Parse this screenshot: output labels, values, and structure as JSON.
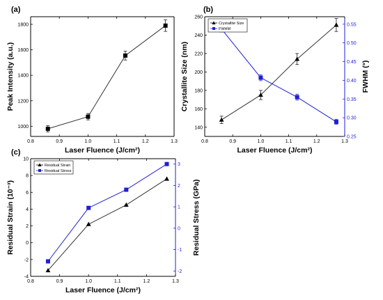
{
  "figure": {
    "panels": [
      {
        "id": "a",
        "label": "(a)"
      },
      {
        "id": "b",
        "label": "(b)"
      },
      {
        "id": "c",
        "label": "(c)"
      }
    ],
    "colors": {
      "black_series": "#000000",
      "blue_series": "#1f1fd6",
      "right_axis": "#1f1fd6",
      "line": "#333333"
    }
  },
  "chart_data": [
    {
      "type": "line",
      "panel": "(a)",
      "xlabel": "Laser Fluence (J/cm²)",
      "ylabel": "Peak Intensity (a.u.)",
      "xlim": [
        0.8,
        1.3
      ],
      "ylim": [
        920,
        1860
      ],
      "xticks": [
        0.8,
        0.9,
        1.0,
        1.1,
        1.2,
        1.3
      ],
      "xtick_labels": [
        "0.8",
        "0.9",
        "1.0",
        "1.1",
        "1.2",
        "1.3"
      ],
      "yticks": [
        1000,
        1200,
        1400,
        1600,
        1800
      ],
      "ytick_labels": [
        "1000",
        "1200",
        "1400",
        "1600",
        "1800"
      ],
      "grid": false,
      "x": [
        0.86,
        1.0,
        1.13,
        1.27
      ],
      "series": [
        {
          "marker": "square",
          "color": "#000000",
          "values": [
            980,
            1075,
            1555,
            1790
          ],
          "errors": [
            25,
            25,
            35,
            45
          ]
        }
      ]
    },
    {
      "type": "line",
      "panel": "(b)",
      "xlabel": "Laser Fluence (J/cm²)",
      "ylabel": "Crystallite Size (nm)",
      "ylabel_right": "FWHM (°)",
      "xlim": [
        0.8,
        1.3
      ],
      "ylim": [
        130,
        260
      ],
      "ylim_right": [
        0.25,
        0.57
      ],
      "xticks": [
        0.8,
        0.9,
        1.0,
        1.1,
        1.2,
        1.3
      ],
      "xtick_labels": [
        "0.8",
        "0.9",
        "1.0",
        "1.1",
        "1.2",
        "1.3"
      ],
      "yticks": [
        140,
        160,
        180,
        200,
        220,
        240,
        260
      ],
      "ytick_labels": [
        "140",
        "160",
        "180",
        "200",
        "220",
        "240",
        "260"
      ],
      "yticks_right": [
        0.25,
        0.3,
        0.35,
        0.4,
        0.45,
        0.5,
        0.55
      ],
      "ytick_labels_right": [
        "0.25",
        "0.30",
        "0.35",
        "0.40",
        "0.45",
        "0.50",
        "0.55"
      ],
      "legend_position": "top-left",
      "grid": false,
      "x": [
        0.86,
        1.0,
        1.13,
        1.27
      ],
      "series": [
        {
          "name": "Crystallite Size",
          "axis": "left",
          "marker": "triangle",
          "color": "#000000",
          "values": [
            148,
            175,
            214,
            251
          ],
          "errors": [
            4,
            5,
            6,
            7
          ]
        },
        {
          "name": "FWHM",
          "axis": "right",
          "marker": "square",
          "color": "#1f1fd6",
          "values": [
            0.537,
            0.407,
            0.355,
            0.289
          ],
          "errors": [
            0.008,
            0.008,
            0.008,
            0.007
          ]
        }
      ]
    },
    {
      "type": "line",
      "panel": "(c)",
      "xlabel": "Laser Fluence (J/cm²)",
      "ylabel": "Residual Strain (10⁻³)",
      "ylabel_right": "Residual Stress (GPa)",
      "xlim": [
        0.8,
        1.3
      ],
      "ylim": [
        -4,
        10
      ],
      "ylim_right": [
        -2.25,
        3.25
      ],
      "xticks": [
        0.8,
        0.9,
        1.0,
        1.1,
        1.2,
        1.3
      ],
      "xtick_labels": [
        "0.8",
        "0.9",
        "1.0",
        "1.1",
        "1.2",
        "1.3"
      ],
      "yticks": [
        -4,
        -2,
        0,
        2,
        4,
        6,
        8,
        10
      ],
      "ytick_labels": [
        "-4",
        "-2",
        "0",
        "2",
        "4",
        "6",
        "8",
        "10"
      ],
      "yticks_right": [
        -2,
        -1,
        0,
        1,
        2,
        3
      ],
      "ytick_labels_right": [
        "-2",
        "-1",
        "0",
        "1",
        "2",
        "3"
      ],
      "legend_position": "top-left",
      "grid": false,
      "x": [
        0.86,
        1.0,
        1.13,
        1.27
      ],
      "series": [
        {
          "name": "Residual Strain",
          "axis": "left",
          "marker": "triangle",
          "color": "#000000",
          "values": [
            -3.3,
            2.2,
            4.5,
            7.6
          ]
        },
        {
          "name": "Residual Stress",
          "axis": "right",
          "marker": "square",
          "color": "#1f1fd6",
          "values": [
            -1.55,
            0.95,
            1.8,
            3.0
          ]
        }
      ]
    }
  ]
}
